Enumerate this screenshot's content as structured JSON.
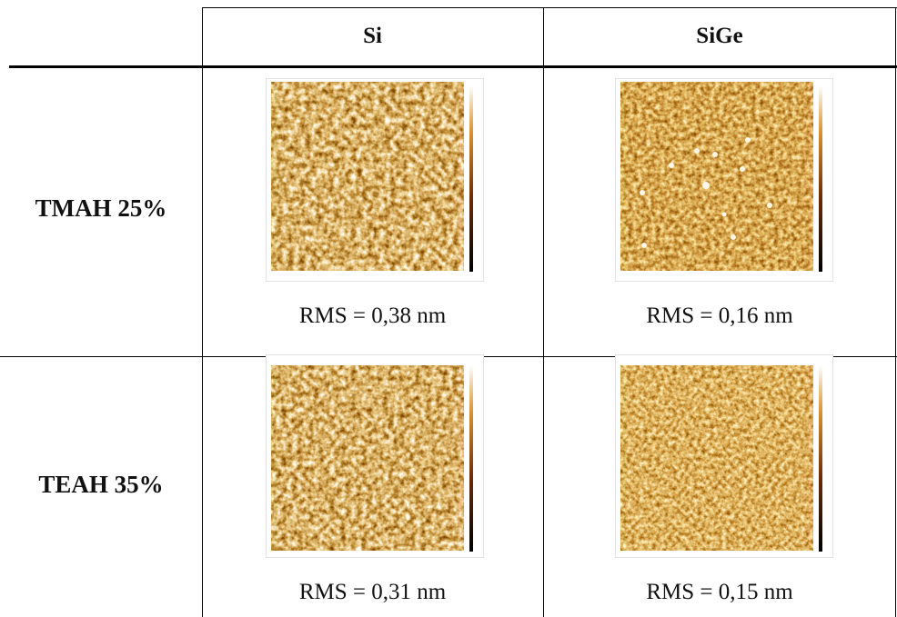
{
  "table": {
    "columns": [
      "Si",
      "SiGe"
    ],
    "rows": [
      {
        "label": "TMAH 25%",
        "cells": [
          "RMS = 0,38 nm",
          "RMS = 0,16 nm"
        ]
      },
      {
        "label": "TEAH 35%",
        "cells": [
          "RMS = 0,31 nm",
          "RMS = 0,15 nm"
        ]
      }
    ]
  }
}
